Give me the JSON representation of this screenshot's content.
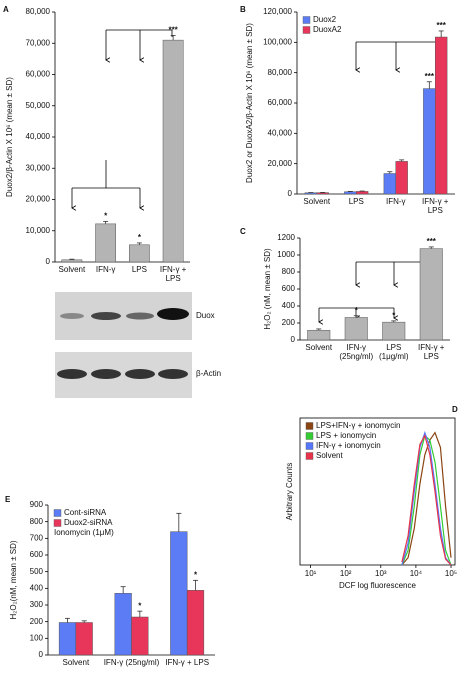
{
  "chart_data": [
    {
      "panel": "A",
      "type": "bar",
      "ylabel": "Duox2/β-Actin X 10⁶ (mean ± SD)",
      "categories": [
        "Solvent",
        "IFN-γ",
        "LPS",
        "IFN-γ + LPS"
      ],
      "values": [
        700,
        12200,
        5500,
        71000
      ],
      "errors": [
        200,
        800,
        600,
        1500
      ],
      "significance": [
        null,
        "*",
        "*",
        "***"
      ],
      "color": "#b4b4b4",
      "ylim": [
        0,
        80000
      ],
      "yticks": [
        0,
        {
          "value": 10000,
          "label": "10,000"
        },
        {
          "value": 20000,
          "label": "20,000"
        },
        {
          "value": 30000,
          "label": "30,000"
        },
        {
          "value": 40000,
          "label": "40,000"
        },
        {
          "value": 50000,
          "label": "50,000"
        },
        {
          "value": 60000,
          "label": "60,000"
        },
        {
          "value": 70000,
          "label": "70,000"
        },
        {
          "value": 80000,
          "label": "80,000"
        }
      ]
    },
    {
      "panel": "B",
      "type": "bar",
      "ylabel": "Duox2 or DuoxA2/β-Actin X 10⁶ (mean ± SD)",
      "categories": [
        "Solvent",
        "LPS",
        "IFN-γ",
        "IFN-γ + LPS"
      ],
      "series": [
        {
          "name": "Duox2",
          "color": "#5b7cf5",
          "values": [
            800,
            1500,
            13500,
            69500
          ],
          "errors": [
            150,
            200,
            1200,
            4500
          ],
          "significance": [
            null,
            null,
            null,
            "***"
          ]
        },
        {
          "name": "DuoxA2",
          "color": "#e8365a",
          "values": [
            900,
            1700,
            21500,
            103500
          ],
          "errors": [
            150,
            250,
            1000,
            4000
          ],
          "significance": [
            null,
            null,
            null,
            "***"
          ]
        }
      ],
      "legend": "upper left",
      "ylim": [
        0,
        120000
      ],
      "yticks": [
        0,
        {
          "value": 20000,
          "label": "20,000"
        },
        {
          "value": 40000,
          "label": "40,000"
        },
        {
          "value": 60000,
          "label": "60,000"
        },
        {
          "value": 80000,
          "label": "80,000"
        },
        {
          "value": 100000,
          "label": "100,000"
        },
        {
          "value": 120000,
          "label": "120,000"
        }
      ]
    },
    {
      "panel": "C",
      "type": "bar",
      "ylabel": "H₂O₂ (nM, mean ± SD)",
      "categories": [
        "Solvent",
        "IFN-γ (25ng/ml)",
        "LPS (1μg/ml)",
        "IFN-γ + LPS"
      ],
      "values": [
        115,
        265,
        210,
        1075
      ],
      "errors": [
        15,
        20,
        15,
        20
      ],
      "significance": [
        null,
        "*",
        "*",
        "***"
      ],
      "color": "#b4b4b4",
      "ylim": [
        0,
        1200
      ],
      "yticks": [
        0,
        200,
        400,
        600,
        800,
        1000,
        1200
      ]
    },
    {
      "panel": "D",
      "type": "line",
      "xscale": "log",
      "xlabel": "DCF log fluorescence",
      "ylabel": "Arbitrary Counts",
      "x": [
        4000,
        6000,
        9000,
        13000,
        18000,
        25000,
        35000,
        50000,
        70000,
        100000
      ],
      "series": [
        {
          "name": "LPS+IFN-γ + ionomycin",
          "color": "#8b4513",
          "values": [
            0,
            5,
            25,
            55,
            75,
            85,
            90,
            80,
            40,
            5
          ]
        },
        {
          "name": "LPS + ionomycin",
          "color": "#33cc33",
          "values": [
            0,
            10,
            40,
            75,
            88,
            85,
            70,
            40,
            10,
            0
          ]
        },
        {
          "name": "IFN-γ + ionomycin",
          "color": "#5577ff",
          "values": [
            0,
            15,
            50,
            80,
            90,
            80,
            55,
            25,
            5,
            0
          ]
        },
        {
          "name": "Solvent",
          "color": "#e8334a",
          "values": [
            2,
            20,
            55,
            82,
            88,
            75,
            50,
            20,
            4,
            0
          ]
        }
      ],
      "legend": "upper left",
      "xlim": [
        5,
        130000
      ],
      "ylim": [
        0,
        100
      ],
      "xticks": [
        {
          "value": 10,
          "label": "10¹"
        },
        {
          "value": 100,
          "label": "10²"
        },
        {
          "value": 1000,
          "label": "10³"
        },
        {
          "value": 10000,
          "label": "10⁴"
        },
        {
          "value": 100000,
          "label": "10⁵"
        }
      ]
    },
    {
      "panel": "E",
      "type": "bar",
      "ylabel": "H₂O₂(nM, mean ± SD)",
      "categories": [
        "Solvent",
        "IFN-γ (25ng/ml)",
        "IFN-γ + LPS"
      ],
      "series": [
        {
          "name": "Cont-siRNA",
          "color": "#5b7cf5",
          "values": [
            195,
            370,
            740
          ],
          "errors": [
            25,
            40,
            110
          ]
        },
        {
          "name": "Duox2-siRNA",
          "color": "#e8365a",
          "values": [
            195,
            228,
            388
          ],
          "errors": [
            10,
            35,
            60
          ],
          "significance": [
            null,
            "*",
            "*"
          ]
        }
      ],
      "legend": "upper left",
      "legend_note": "Ionomycin (1μM)",
      "ylim": [
        0,
        900
      ],
      "yticks": [
        0,
        100,
        200,
        300,
        400,
        500,
        600,
        700,
        800,
        900
      ]
    }
  ],
  "blot": {
    "bands": [
      "Duox",
      "β-Actin"
    ]
  }
}
